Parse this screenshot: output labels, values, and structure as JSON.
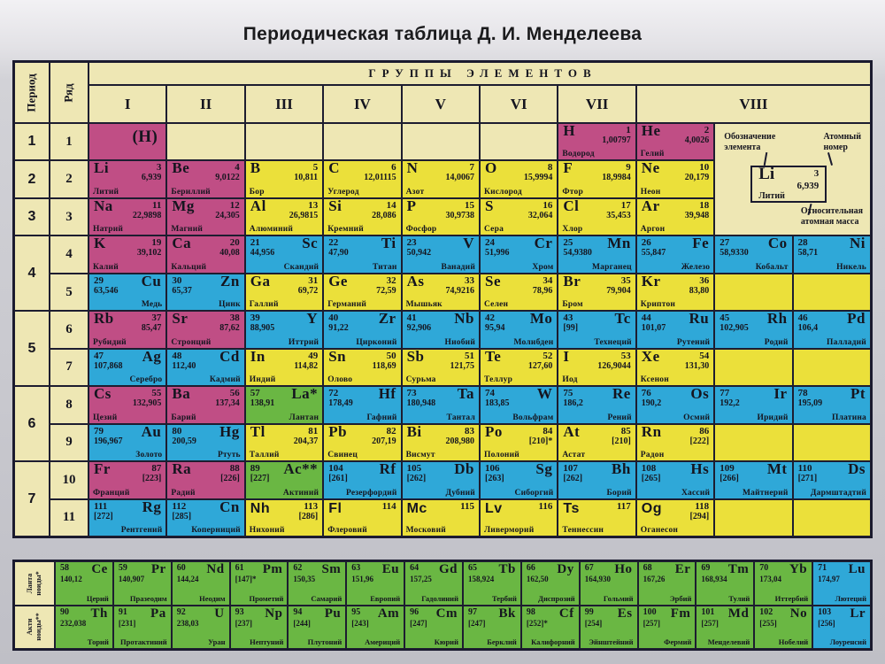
{
  "title": "Периодическая таблица Д. И. Менделеева",
  "header": {
    "groups_title": "ГРУППЫ ЭЛЕМЕНТОВ",
    "period_label": "Период",
    "row_label": "Ряд",
    "group_numerals": [
      "I",
      "II",
      "III",
      "IV",
      "V",
      "VI",
      "VII",
      "VIII"
    ]
  },
  "periods": [
    [
      "1",
      1,
      1
    ],
    [
      "2",
      2,
      2
    ],
    [
      "3",
      3,
      3
    ],
    [
      "4",
      4,
      5
    ],
    [
      "5",
      6,
      7
    ],
    [
      "6",
      8,
      9
    ],
    [
      "7",
      10,
      11
    ]
  ],
  "rows": [
    "1",
    "2",
    "3",
    "4",
    "5",
    "6",
    "7",
    "8",
    "9",
    "10",
    "11"
  ],
  "colors": {
    "magenta": "#c04e85",
    "yellow": "#ebe03a",
    "blue": "#2fa8d8",
    "green": "#6ab743",
    "cream": "#eee7b4",
    "border": "#1a1a2e"
  },
  "legend": {
    "symbol_label_lines": [
      "Обозначение",
      "элемента"
    ],
    "number_label_lines": [
      "Атомный",
      "номер"
    ],
    "mass_label_lines": [
      "Относительная",
      "атомная масса"
    ],
    "example": {
      "symbol": "Li",
      "number": "3",
      "mass": "6,939",
      "name": "Литий"
    }
  },
  "table": {
    "cell_fields": [
      "row",
      "col",
      "color",
      "style",
      "symbol",
      "number",
      "mass",
      "name",
      "sans"
    ],
    "cells": [
      [
        1,
        1,
        "magenta",
        "C",
        "(H)",
        "",
        "",
        ""
      ],
      [
        1,
        7,
        "magenta",
        "L",
        "H",
        "1",
        "1,00797",
        "Водород"
      ],
      [
        1,
        8,
        "magenta",
        "L",
        "He",
        "2",
        "4,0026",
        "Гелий"
      ],
      [
        2,
        1,
        "magenta",
        "L",
        "Li",
        "3",
        "6,939",
        "Литий"
      ],
      [
        2,
        2,
        "magenta",
        "L",
        "Be",
        "4",
        "9,0122",
        "Бериллий"
      ],
      [
        2,
        3,
        "yellow",
        "L",
        "B",
        "5",
        "10,811",
        "Бор"
      ],
      [
        2,
        4,
        "yellow",
        "L",
        "C",
        "6",
        "12,01115",
        "Углерод"
      ],
      [
        2,
        5,
        "yellow",
        "L",
        "N",
        "7",
        "14,0067",
        "Азот"
      ],
      [
        2,
        6,
        "yellow",
        "L",
        "O",
        "8",
        "15,9994",
        "Кислород"
      ],
      [
        2,
        7,
        "yellow",
        "L",
        "F",
        "9",
        "18,9984",
        "Фтор"
      ],
      [
        2,
        8,
        "yellow",
        "L",
        "Ne",
        "10",
        "20,179",
        "Неон"
      ],
      [
        3,
        1,
        "magenta",
        "L",
        "Na",
        "11",
        "22,9898",
        "Натрий"
      ],
      [
        3,
        2,
        "magenta",
        "L",
        "Mg",
        "12",
        "24,305",
        "Магний"
      ],
      [
        3,
        3,
        "yellow",
        "L",
        "Al",
        "13",
        "26,9815",
        "Алюминий"
      ],
      [
        3,
        4,
        "yellow",
        "L",
        "Si",
        "14",
        "28,086",
        "Кремний"
      ],
      [
        3,
        5,
        "yellow",
        "L",
        "P",
        "15",
        "30,9738",
        "Фосфор"
      ],
      [
        3,
        6,
        "yellow",
        "L",
        "S",
        "16",
        "32,064",
        "Сера"
      ],
      [
        3,
        7,
        "yellow",
        "L",
        "Cl",
        "17",
        "35,453",
        "Хлор"
      ],
      [
        3,
        8,
        "yellow",
        "L",
        "Ar",
        "18",
        "39,948",
        "Аргон"
      ],
      [
        4,
        1,
        "magenta",
        "L",
        "K",
        "19",
        "39,102",
        "Калий"
      ],
      [
        4,
        2,
        "magenta",
        "L",
        "Ca",
        "20",
        "40,08",
        "Кальций"
      ],
      [
        4,
        3,
        "blue",
        "R",
        "Sc",
        "21",
        "44,956",
        "Скандий"
      ],
      [
        4,
        4,
        "blue",
        "R",
        "Ti",
        "22",
        "47,90",
        "Титан"
      ],
      [
        4,
        5,
        "blue",
        "R",
        "V",
        "23",
        "50,942",
        "Ванадий"
      ],
      [
        4,
        6,
        "blue",
        "R",
        "Cr",
        "24",
        "51,996",
        "Хром"
      ],
      [
        4,
        7,
        "blue",
        "R",
        "Mn",
        "25",
        "54,9380",
        "Марганец"
      ],
      [
        4,
        8,
        "blue",
        "R",
        "Fe",
        "26",
        "55,847",
        "Железо"
      ],
      [
        4,
        9,
        "blue",
        "R",
        "Co",
        "27",
        "58,9330",
        "Кобальт"
      ],
      [
        4,
        10,
        "blue",
        "R",
        "Ni",
        "28",
        "58,71",
        "Никель"
      ],
      [
        5,
        1,
        "blue",
        "R",
        "Cu",
        "29",
        "63,546",
        "Медь"
      ],
      [
        5,
        2,
        "blue",
        "R",
        "Zn",
        "30",
        "65,37",
        "Цинк"
      ],
      [
        5,
        3,
        "yellow",
        "L",
        "Ga",
        "31",
        "69,72",
        "Галлий"
      ],
      [
        5,
        4,
        "yellow",
        "L",
        "Ge",
        "32",
        "72,59",
        "Германий"
      ],
      [
        5,
        5,
        "yellow",
        "L",
        "As",
        "33",
        "74,9216",
        "Мышьяк"
      ],
      [
        5,
        6,
        "yellow",
        "L",
        "Se",
        "34",
        "78,96",
        "Селен"
      ],
      [
        5,
        7,
        "yellow",
        "L",
        "Br",
        "35",
        "79,904",
        "Бром"
      ],
      [
        5,
        8,
        "yellow",
        "L",
        "Kr",
        "36",
        "83,80",
        "Криптон"
      ],
      [
        6,
        1,
        "magenta",
        "L",
        "Rb",
        "37",
        "85,47",
        "Рубидий"
      ],
      [
        6,
        2,
        "magenta",
        "L",
        "Sr",
        "38",
        "87,62",
        "Стронций"
      ],
      [
        6,
        3,
        "blue",
        "R",
        "Y",
        "39",
        "88,905",
        "Иттрий"
      ],
      [
        6,
        4,
        "blue",
        "R",
        "Zr",
        "40",
        "91,22",
        "Цирконий"
      ],
      [
        6,
        5,
        "blue",
        "R",
        "Nb",
        "41",
        "92,906",
        "Ниобий"
      ],
      [
        6,
        6,
        "blue",
        "R",
        "Mo",
        "42",
        "95,94",
        "Молибден"
      ],
      [
        6,
        7,
        "blue",
        "R",
        "Tc",
        "43",
        "[99]",
        "Технеций"
      ],
      [
        6,
        8,
        "blue",
        "R",
        "Ru",
        "44",
        "101,07",
        "Рутений"
      ],
      [
        6,
        9,
        "blue",
        "R",
        "Rh",
        "45",
        "102,905",
        "Родий"
      ],
      [
        6,
        10,
        "blue",
        "R",
        "Pd",
        "46",
        "106,4",
        "Палладий"
      ],
      [
        7,
        1,
        "blue",
        "R",
        "Ag",
        "47",
        "107,868",
        "Серебро"
      ],
      [
        7,
        2,
        "blue",
        "R",
        "Cd",
        "48",
        "112,40",
        "Кадмий"
      ],
      [
        7,
        3,
        "yellow",
        "L",
        "In",
        "49",
        "114,82",
        "Индий"
      ],
      [
        7,
        4,
        "yellow",
        "L",
        "Sn",
        "50",
        "118,69",
        "Олово"
      ],
      [
        7,
        5,
        "yellow",
        "L",
        "Sb",
        "51",
        "121,75",
        "Сурьма"
      ],
      [
        7,
        6,
        "yellow",
        "L",
        "Te",
        "52",
        "127,60",
        "Теллур"
      ],
      [
        7,
        7,
        "yellow",
        "L",
        "I",
        "53",
        "126,9044",
        "Иод"
      ],
      [
        7,
        8,
        "yellow",
        "L",
        "Xe",
        "54",
        "131,30",
        "Ксенон"
      ],
      [
        8,
        1,
        "magenta",
        "L",
        "Cs",
        "55",
        "132,905",
        "Цезий"
      ],
      [
        8,
        2,
        "magenta",
        "L",
        "Ba",
        "56",
        "137,34",
        "Барий"
      ],
      [
        8,
        3,
        "green",
        "R",
        "La*",
        "57",
        "138,91",
        "Лантан"
      ],
      [
        8,
        4,
        "blue",
        "R",
        "Hf",
        "72",
        "178,49",
        "Гафний"
      ],
      [
        8,
        5,
        "blue",
        "R",
        "Ta",
        "73",
        "180,948",
        "Тантал"
      ],
      [
        8,
        6,
        "blue",
        "R",
        "W",
        "74",
        "183,85",
        "Вольфрам"
      ],
      [
        8,
        7,
        "blue",
        "R",
        "Re",
        "75",
        "186,2",
        "Рений"
      ],
      [
        8,
        8,
        "blue",
        "R",
        "Os",
        "76",
        "190,2",
        "Осмий"
      ],
      [
        8,
        9,
        "blue",
        "R",
        "Ir",
        "77",
        "192,2",
        "Иридий"
      ],
      [
        8,
        10,
        "blue",
        "R",
        "Pt",
        "78",
        "195,09",
        "Платина"
      ],
      [
        9,
        1,
        "blue",
        "R",
        "Au",
        "79",
        "196,967",
        "Золото"
      ],
      [
        9,
        2,
        "blue",
        "R",
        "Hg",
        "80",
        "200,59",
        "Ртуть"
      ],
      [
        9,
        3,
        "yellow",
        "L",
        "Tl",
        "81",
        "204,37",
        "Таллий"
      ],
      [
        9,
        4,
        "yellow",
        "L",
        "Pb",
        "82",
        "207,19",
        "Свинец"
      ],
      [
        9,
        5,
        "yellow",
        "L",
        "Bi",
        "83",
        "208,980",
        "Висмут"
      ],
      [
        9,
        6,
        "yellow",
        "L",
        "Po",
        "84",
        "[210]*",
        "Полоний"
      ],
      [
        9,
        7,
        "yellow",
        "L",
        "At",
        "85",
        "[210]",
        "Астат"
      ],
      [
        9,
        8,
        "yellow",
        "L",
        "Rn",
        "86",
        "[222]",
        "Радон"
      ],
      [
        10,
        1,
        "magenta",
        "L",
        "Fr",
        "87",
        "[223]",
        "Франций"
      ],
      [
        10,
        2,
        "magenta",
        "L",
        "Ra",
        "88",
        "[226]",
        "Радий"
      ],
      [
        10,
        3,
        "green",
        "R",
        "Ac**",
        "89",
        "[227]",
        "Актиний"
      ],
      [
        10,
        4,
        "blue",
        "R",
        "Rf",
        "104",
        "[261]",
        "Резерфордий"
      ],
      [
        10,
        5,
        "blue",
        "R",
        "Db",
        "105",
        "[262]",
        "Дубний"
      ],
      [
        10,
        6,
        "blue",
        "R",
        "Sg",
        "106",
        "[263]",
        "Сиборгий"
      ],
      [
        10,
        7,
        "blue",
        "R",
        "Bh",
        "107",
        "[262]",
        "Борий"
      ],
      [
        10,
        8,
        "blue",
        "R",
        "Hs",
        "108",
        "[265]",
        "Хассий"
      ],
      [
        10,
        9,
        "blue",
        "R",
        "Mt",
        "109",
        "[266]",
        "Майтнерий"
      ],
      [
        10,
        10,
        "blue",
        "R",
        "Ds",
        "110",
        "[271]",
        "Дармштадтий"
      ],
      [
        11,
        1,
        "blue",
        "R",
        "Rg",
        "111",
        "[272]",
        "Рентгений"
      ],
      [
        11,
        2,
        "blue",
        "R",
        "Cn",
        "112",
        "[285]",
        "Коперниций"
      ],
      [
        11,
        3,
        "yellow",
        "L",
        "Nh",
        "113",
        "[286]",
        "Нихоний",
        1
      ],
      [
        11,
        4,
        "yellow",
        "L",
        "Fl",
        "114",
        "",
        "Флеровий",
        1
      ],
      [
        11,
        5,
        "yellow",
        "L",
        "Mc",
        "115",
        "",
        "Московий",
        1
      ],
      [
        11,
        6,
        "yellow",
        "L",
        "Lv",
        "116",
        "",
        "Ливерморий",
        1
      ],
      [
        11,
        7,
        "yellow",
        "L",
        "Ts",
        "117",
        "",
        "Теннессин",
        1
      ],
      [
        11,
        8,
        "yellow",
        "L",
        "Og",
        "118",
        "[294]",
        "Оганесон",
        1
      ]
    ],
    "empty_cells": [
      [
        1,
        2,
        "cream"
      ],
      [
        1,
        3,
        "cream"
      ],
      [
        1,
        4,
        "cream"
      ],
      [
        1,
        5,
        "cream"
      ],
      [
        1,
        6,
        "cream"
      ],
      [
        5,
        9,
        "yellow"
      ],
      [
        5,
        10,
        "yellow"
      ],
      [
        7,
        9,
        "yellow"
      ],
      [
        7,
        10,
        "yellow"
      ],
      [
        9,
        9,
        "yellow"
      ],
      [
        9,
        10,
        "yellow"
      ],
      [
        11,
        9,
        "yellow"
      ],
      [
        11,
        10,
        "yellow"
      ]
    ]
  },
  "footnotes": [
    {
      "label_lines": [
        "Ланта",
        "ноиды*"
      ],
      "cell_fields": [
        "color",
        "symbol",
        "number",
        "mass",
        "name"
      ],
      "cells": [
        [
          "green",
          "Ce",
          "58",
          "140,12",
          "Церий"
        ],
        [
          "green",
          "Pr",
          "59",
          "140,907",
          "Празеодим"
        ],
        [
          "green",
          "Nd",
          "60",
          "144,24",
          "Неодим"
        ],
        [
          "green",
          "Pm",
          "61",
          "[147]*",
          "Прометий"
        ],
        [
          "green",
          "Sm",
          "62",
          "150,35",
          "Самарий"
        ],
        [
          "green",
          "Eu",
          "63",
          "151,96",
          "Европий"
        ],
        [
          "green",
          "Gd",
          "64",
          "157,25",
          "Гадолиний"
        ],
        [
          "green",
          "Tb",
          "65",
          "158,924",
          "Тербий"
        ],
        [
          "green",
          "Dy",
          "66",
          "162,50",
          "Диспрозий"
        ],
        [
          "green",
          "Ho",
          "67",
          "164,930",
          "Гольмий"
        ],
        [
          "green",
          "Er",
          "68",
          "167,26",
          "Эрбий"
        ],
        [
          "green",
          "Tm",
          "69",
          "168,934",
          "Тулий"
        ],
        [
          "green",
          "Yb",
          "70",
          "173,04",
          "Иттербий"
        ],
        [
          "blue",
          "Lu",
          "71",
          "174,97",
          "Лютеций"
        ]
      ]
    },
    {
      "label_lines": [
        "Акти",
        "ноиды**"
      ],
      "cell_fields": [
        "color",
        "symbol",
        "number",
        "mass",
        "name"
      ],
      "cells": [
        [
          "green",
          "Th",
          "90",
          "232,038",
          "Торий"
        ],
        [
          "green",
          "Pa",
          "91",
          "[231]",
          "Протактиний"
        ],
        [
          "green",
          "U",
          "92",
          "238,03",
          "Уран"
        ],
        [
          "green",
          "Np",
          "93",
          "[237]",
          "Нептуний"
        ],
        [
          "green",
          "Pu",
          "94",
          "[244]",
          "Плутоний"
        ],
        [
          "green",
          "Am",
          "95",
          "[243]",
          "Америций"
        ],
        [
          "green",
          "Cm",
          "96",
          "[247]",
          "Кюрий"
        ],
        [
          "green",
          "Bk",
          "97",
          "[247]",
          "Берклий"
        ],
        [
          "green",
          "Cf",
          "98",
          "[252]*",
          "Калифорний"
        ],
        [
          "green",
          "Es",
          "99",
          "[254]",
          "Эйнштейний"
        ],
        [
          "green",
          "Fm",
          "100",
          "[257]",
          "Фермий"
        ],
        [
          "green",
          "Md",
          "101",
          "[257]",
          "Менделевий"
        ],
        [
          "green",
          "No",
          "102",
          "[255]",
          "Нобелий"
        ],
        [
          "blue",
          "Lr",
          "103",
          "[256]",
          "Лоуренсий"
        ]
      ]
    }
  ]
}
